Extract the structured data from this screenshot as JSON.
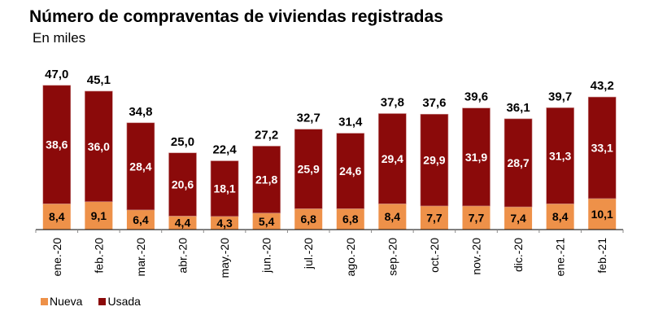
{
  "chart_data": {
    "type": "bar",
    "stacked": true,
    "title": "Número de compraventas de viviendas registradas",
    "subtitle": "En miles",
    "xlabel": "",
    "ylabel": "",
    "categories": [
      "ene.-20",
      "feb.-20",
      "mar.-20",
      "abr.-20",
      "may.-20",
      "jun.-20",
      "jul.-20",
      "ago.-20",
      "sep.-20",
      "oct.-20",
      "nov.-20",
      "dic.-20",
      "ene.-21",
      "feb.-21"
    ],
    "series": [
      {
        "name": "Nueva",
        "color": "#EE9149",
        "values": [
          8.4,
          9.1,
          6.4,
          4.4,
          4.3,
          5.4,
          6.8,
          6.8,
          8.4,
          7.7,
          7.7,
          7.4,
          8.4,
          10.1
        ],
        "labels": [
          "8,4",
          "9,1",
          "6,4",
          "4,4",
          "4,3",
          "5,4",
          "6,8",
          "6,8",
          "8,4",
          "7,7",
          "7,7",
          "7,4",
          "8,4",
          "10,1"
        ]
      },
      {
        "name": "Usada",
        "color": "#8B0A0A",
        "values": [
          38.6,
          36.0,
          28.4,
          20.6,
          18.1,
          21.8,
          25.9,
          24.6,
          29.4,
          29.9,
          31.9,
          28.7,
          31.3,
          33.1
        ],
        "labels": [
          "38,6",
          "36,0",
          "28,4",
          "20,6",
          "18,1",
          "21,8",
          "25,9",
          "24,6",
          "29,4",
          "29,9",
          "31,9",
          "28,7",
          "31,3",
          "33,1"
        ]
      }
    ],
    "totals": [
      47.0,
      45.1,
      34.8,
      25.0,
      22.4,
      27.2,
      32.7,
      31.4,
      37.8,
      37.6,
      39.6,
      36.1,
      39.7,
      43.2
    ],
    "total_labels": [
      "47,0",
      "45,1",
      "34,8",
      "25,0",
      "22,4",
      "27,2",
      "32,7",
      "31,4",
      "37,8",
      "37,6",
      "39,6",
      "36,1",
      "39,7",
      "43,2"
    ],
    "ylim": [
      0,
      50
    ],
    "grid": false,
    "legend": {
      "placement": "bottom-left",
      "entries": [
        "Nueva",
        "Usada"
      ]
    }
  }
}
